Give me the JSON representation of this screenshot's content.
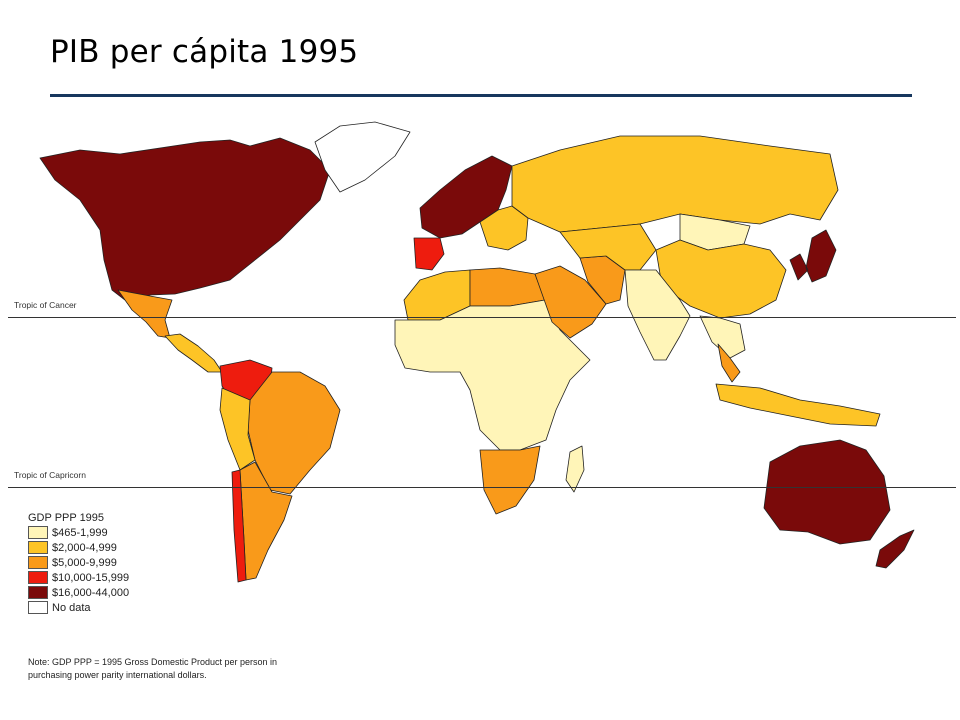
{
  "slide": {
    "title": "PIB per cápita 1995",
    "rule_color": "#17375e"
  },
  "map": {
    "tropics": [
      {
        "label": "Tropic of Cancer",
        "latitude_deg": 23.4
      },
      {
        "label": "Tropic of Capricorn",
        "latitude_deg": -23.4
      }
    ],
    "legend": {
      "title": "GDP PPP 1995",
      "classes": [
        {
          "key": "c1",
          "label": "$465-1,999",
          "color": "#fff5b8"
        },
        {
          "key": "c2",
          "label": "$2,000-4,999",
          "color": "#fdc426"
        },
        {
          "key": "c3",
          "label": "$5,000-9,999",
          "color": "#f99a1a"
        },
        {
          "key": "c4",
          "label": "$10,000-15,999",
          "color": "#ee1c0e"
        },
        {
          "key": "c5",
          "label": "$16,000-44,000",
          "color": "#7a0a0a"
        },
        {
          "key": "nodata",
          "label": "No data",
          "color": "#ffffff"
        }
      ]
    },
    "note": "Note: GDP PPP = 1995 Gross Domestic Product per person in purchasing power parity international dollars.",
    "region_classes": {
      "north_america": "c5",
      "greenland": "nodata",
      "mexico": "c3",
      "central_america": "c2",
      "colombia_venezuela": "c4",
      "brazil": "c3",
      "andes": "c2",
      "southern_cone": "c3",
      "chile": "c4",
      "western_europe": "c5",
      "iberia": "c4",
      "eastern_europe": "c2",
      "russia": "c2",
      "north_africa": "c2",
      "libya": "c3",
      "subsaharan_africa": "c1",
      "southern_africa": "c3",
      "madagascar": "c1",
      "middle_east": "c3",
      "iran": "c3",
      "central_asia": "c2",
      "mongolia": "c1",
      "china": "c2",
      "india": "c1",
      "southeast_asia": "c1",
      "thailand_malaysia": "c3",
      "indonesia": "c2",
      "japan_korea": "c5",
      "australia_nz": "c5"
    }
  }
}
